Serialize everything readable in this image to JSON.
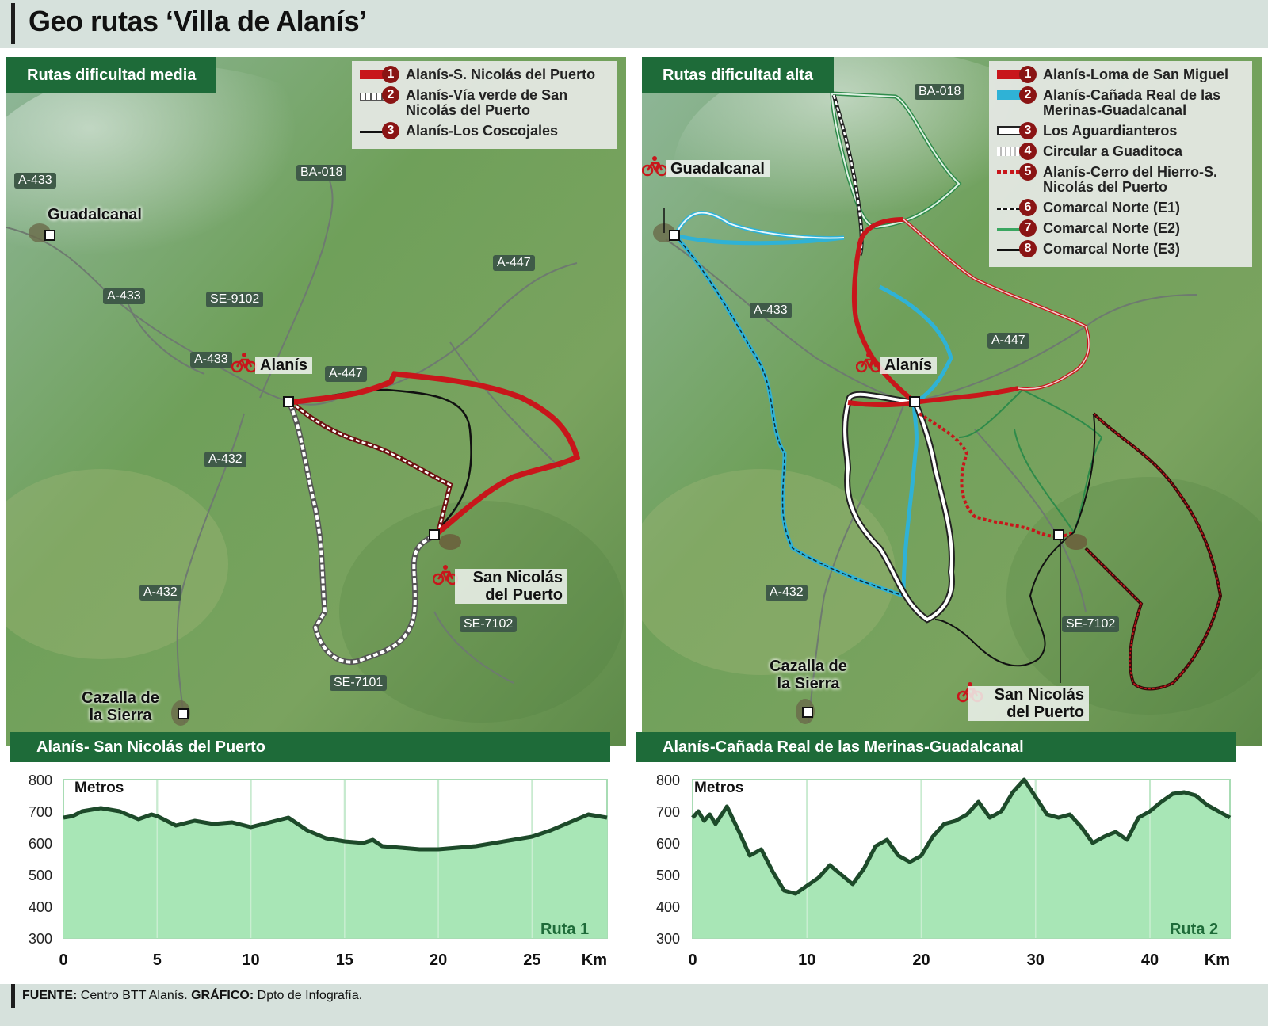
{
  "title": "Geo rutas ‘Villa de Alanís’",
  "left": {
    "tag": "Rutas dificultad media",
    "legend": [
      {
        "num": "1",
        "label": "Alanís-S. Nicolás del Puerto",
        "color": "#c8161b"
      },
      {
        "num": "2",
        "label": "Alanís-Vía verde de San Nicolás del Puerto",
        "color": "#ffffff"
      },
      {
        "num": "3",
        "label": "Alanís-Los Coscojales",
        "color": "#111111"
      }
    ],
    "roads": [
      "A-433",
      "BA-018",
      "A-433",
      "SE-9102",
      "A-433",
      "A-447",
      "A-447",
      "A-432",
      "A-432",
      "SE-7102",
      "SE-7101"
    ],
    "towns": {
      "guadalcanal": "Guadalcanal",
      "alanis": "Alanís",
      "san_nicolas": "San Nicolás del Puerto",
      "cazalla": "Cazalla de la Sierra"
    },
    "profile_title": "Alanís- San Nicolás del Puerto",
    "ruta": "Ruta 1"
  },
  "right": {
    "tag": "Rutas dificultad alta",
    "legend": [
      {
        "num": "1",
        "label": "Alanís-Loma de San Miguel",
        "color": "#c8161b"
      },
      {
        "num": "2",
        "label": "Alanís-Cañada Real de las Merinas-Guadalcanal",
        "color": "#2fb2d6"
      },
      {
        "num": "3",
        "label": "Los Aguardianteros",
        "color": "#ffffff"
      },
      {
        "num": "4",
        "label": "Circular a Guaditoca",
        "color": "#ffffff"
      },
      {
        "num": "5",
        "label": "Alanís-Cerro del Hierro-S. Nicolás del Puerto",
        "color": "#c8161b"
      },
      {
        "num": "6",
        "label": "Comarcal Norte (E1)",
        "color": "#111111"
      },
      {
        "num": "7",
        "label": "Comarcal Norte (E2)",
        "color": "#3aa660"
      },
      {
        "num": "8",
        "label": "Comarcal Norte (E3)",
        "color": "#111111"
      }
    ],
    "roads": [
      "BA-018",
      "A-433",
      "A-447",
      "A-432",
      "SE-7102"
    ],
    "towns": {
      "guadalcanal": "Guadalcanal",
      "alanis": "Alanís",
      "san_nicolas": "San Nicolás del Puerto",
      "cazalla": "Cazalla de la Sierra"
    },
    "profile_title": "Alanís-Cañada Real  de las Merinas-Guadalcanal",
    "ruta": "Ruta 2"
  },
  "chart_data": [
    {
      "type": "area",
      "title": "Alanís- San Nicolás del Puerto",
      "ylabel": "Metros",
      "xlabel": "Km",
      "ylim": [
        300,
        800
      ],
      "xlim": [
        0,
        29
      ],
      "yticks": [
        "800",
        "700",
        "600",
        "500",
        "400",
        "300"
      ],
      "xticks": [
        "0",
        "5",
        "10",
        "15",
        "20",
        "25"
      ],
      "series": [
        {
          "name": "Ruta 1",
          "x": [
            0,
            0.5,
            1,
            1.5,
            2,
            3,
            4,
            4.7,
            5,
            6,
            7,
            8,
            9,
            10,
            11,
            12,
            12.5,
            13,
            14,
            15,
            16,
            16.5,
            17,
            18,
            19,
            20,
            21,
            22,
            23,
            24,
            25,
            26,
            27,
            28,
            28.5,
            29
          ],
          "y": [
            680,
            685,
            700,
            705,
            710,
            700,
            675,
            690,
            685,
            655,
            670,
            660,
            665,
            650,
            665,
            680,
            660,
            640,
            615,
            605,
            600,
            610,
            590,
            585,
            580,
            580,
            585,
            590,
            600,
            610,
            620,
            640,
            665,
            690,
            685,
            680
          ]
        }
      ]
    },
    {
      "type": "area",
      "title": "Alanís-Cañada Real  de las Merinas-Guadalcanal",
      "ylabel": "Metros",
      "xlabel": "Km",
      "ylim": [
        300,
        800
      ],
      "xlim": [
        0,
        47
      ],
      "yticks": [
        "800",
        "700",
        "600",
        "500",
        "400",
        "300"
      ],
      "xticks": [
        "0",
        "10",
        "20",
        "30",
        "40"
      ],
      "series": [
        {
          "name": "Ruta 2",
          "x": [
            0,
            0.5,
            1,
            1.5,
            2,
            3,
            4,
            5,
            6,
            7,
            8,
            9,
            10,
            11,
            12,
            13,
            14,
            15,
            16,
            17,
            18,
            19,
            20,
            21,
            22,
            23,
            24,
            25,
            26,
            27,
            28,
            29,
            30,
            31,
            32,
            33,
            34,
            35,
            36,
            37,
            38,
            39,
            40,
            41,
            42,
            43,
            44,
            45,
            46,
            47
          ],
          "y": [
            680,
            700,
            670,
            690,
            660,
            715,
            640,
            560,
            580,
            510,
            450,
            440,
            465,
            490,
            530,
            500,
            470,
            520,
            590,
            610,
            560,
            540,
            560,
            620,
            660,
            670,
            690,
            730,
            680,
            700,
            760,
            800,
            745,
            690,
            680,
            690,
            650,
            600,
            620,
            635,
            610,
            680,
            700,
            730,
            755,
            760,
            750,
            720,
            700,
            680
          ]
        }
      ]
    }
  ],
  "footer": {
    "fuente_label": "FUENTE:",
    "fuente": " Centro BTT Alanís. ",
    "grafico_label": "GRÁFICO:",
    "grafico": " Dpto de Infografía."
  }
}
